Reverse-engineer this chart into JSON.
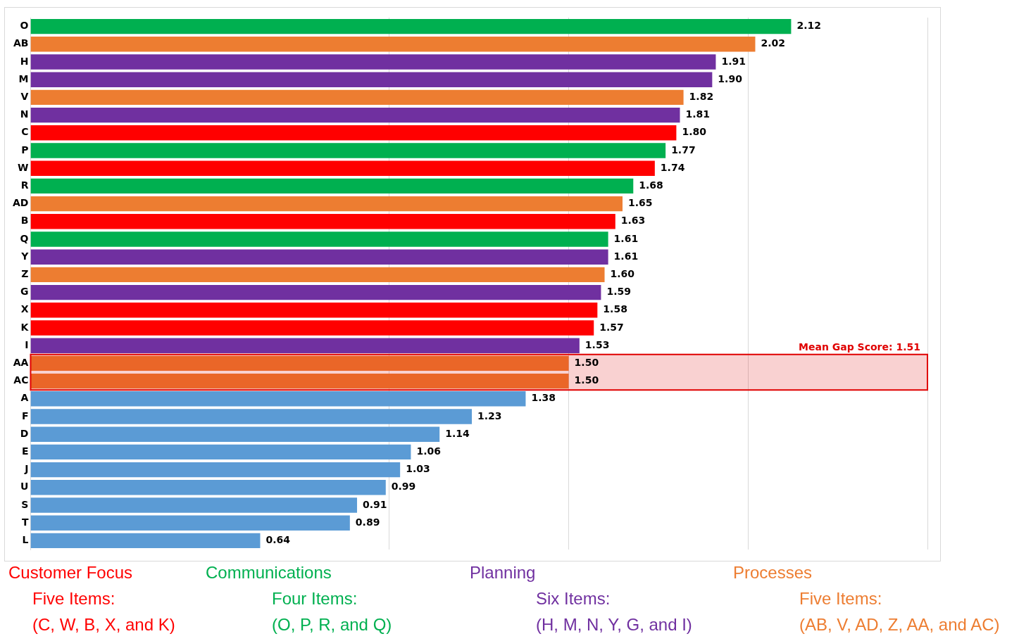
{
  "chart_data": {
    "type": "bar",
    "orientation": "horizontal",
    "categories": [
      "O",
      "AB",
      "H",
      "M",
      "V",
      "N",
      "C",
      "P",
      "W",
      "R",
      "AD",
      "B",
      "Q",
      "Y",
      "Z",
      "G",
      "X",
      "K",
      "I",
      "AA",
      "AC",
      "A",
      "F",
      "D",
      "E",
      "J",
      "U",
      "S",
      "T",
      "L"
    ],
    "series": [
      {
        "name": "Customer Focus",
        "color": "#ff0000",
        "values": [
          null,
          null,
          null,
          null,
          null,
          null,
          1.8,
          null,
          1.74,
          null,
          null,
          1.63,
          null,
          null,
          null,
          null,
          1.58,
          1.57,
          null,
          null,
          null,
          null,
          null,
          null,
          null,
          null,
          null,
          null,
          null,
          null
        ],
        "value_labels": [
          null,
          null,
          null,
          null,
          null,
          null,
          "1.80",
          null,
          "1.74",
          null,
          null,
          "1.63",
          null,
          null,
          null,
          null,
          "1.58",
          "1.57",
          null,
          null,
          null,
          null,
          null,
          null,
          null,
          null,
          null,
          null,
          null,
          null
        ]
      },
      {
        "name": "Communications",
        "color": "#00b050",
        "values": [
          2.12,
          null,
          null,
          null,
          null,
          null,
          null,
          1.77,
          null,
          1.68,
          null,
          null,
          1.61,
          null,
          null,
          null,
          null,
          null,
          null,
          null,
          null,
          null,
          null,
          null,
          null,
          null,
          null,
          null,
          null,
          null
        ],
        "value_labels": [
          "2.12",
          null,
          null,
          null,
          null,
          null,
          null,
          "1.77",
          null,
          "1.68",
          null,
          null,
          "1.61",
          null,
          null,
          null,
          null,
          null,
          null,
          null,
          null,
          null,
          null,
          null,
          null,
          null,
          null,
          null,
          null,
          null
        ]
      },
      {
        "name": "Planning",
        "color": "#7030a0",
        "values": [
          null,
          null,
          1.91,
          1.9,
          null,
          1.81,
          null,
          null,
          null,
          null,
          null,
          null,
          null,
          1.61,
          null,
          1.59,
          null,
          null,
          1.53,
          null,
          null,
          null,
          null,
          null,
          null,
          null,
          null,
          null,
          null,
          null
        ],
        "value_labels": [
          null,
          null,
          "1.91",
          "1.90",
          null,
          "1.81",
          null,
          null,
          null,
          null,
          null,
          null,
          null,
          "1.61",
          null,
          "1.59",
          null,
          null,
          "1.53",
          null,
          null,
          null,
          null,
          null,
          null,
          null,
          null,
          null,
          null,
          null
        ]
      },
      {
        "name": "Processes",
        "color": "#ed7d31",
        "values": [
          null,
          2.02,
          null,
          null,
          1.82,
          null,
          null,
          null,
          null,
          null,
          1.65,
          null,
          null,
          null,
          1.6,
          null,
          null,
          null,
          null,
          1.5,
          1.5,
          null,
          null,
          null,
          null,
          null,
          null,
          null,
          null,
          null
        ],
        "value_labels": [
          null,
          "2.02",
          null,
          null,
          "1.82",
          null,
          null,
          null,
          null,
          null,
          "1.65",
          null,
          null,
          null,
          "1.60",
          null,
          null,
          null,
          null,
          "1.50",
          "1.50",
          null,
          null,
          null,
          null,
          null,
          null,
          null,
          null,
          null
        ]
      },
      {
        "color": "#5b9bd5",
        "values": [
          null,
          null,
          null,
          null,
          null,
          null,
          null,
          null,
          null,
          null,
          null,
          null,
          null,
          null,
          null,
          null,
          null,
          null,
          null,
          null,
          null,
          1.38,
          1.23,
          1.14,
          1.06,
          1.03,
          0.99,
          0.91,
          0.89,
          0.64
        ],
        "value_labels": [
          null,
          null,
          null,
          null,
          null,
          null,
          null,
          null,
          null,
          null,
          null,
          null,
          null,
          null,
          null,
          null,
          null,
          null,
          null,
          null,
          null,
          "1.38",
          "1.23",
          "1.14",
          "1.06",
          "1.03",
          "0.99",
          "0.91",
          "0.89",
          "0.64"
        ]
      }
    ],
    "xlim": [
      0,
      2.5
    ],
    "xticks": [
      {
        "value": 1,
        "label": null
      },
      {
        "value": 1.5,
        "label": null
      },
      {
        "value": 2,
        "label": null
      },
      {
        "value": 2.5,
        "label": null
      }
    ],
    "grid": "x",
    "tick_labels": "y",
    "legend": "bottom",
    "bands": [
      {
        "axis": "y",
        "from": "AA",
        "to": "AC",
        "label": "Mean Gap Score: 1.51",
        "color": "#e00000"
      }
    ],
    "annotations": [
      "Five Items:",
      "Four Items:",
      "Six Items:",
      "Five Items:",
      "(C, W, B, X, and K)",
      "(O, P, R, and Q)",
      "(H, M, N, Y, G, and I)",
      "(AB, V, AD, Z, AA, and AC)"
    ]
  }
}
